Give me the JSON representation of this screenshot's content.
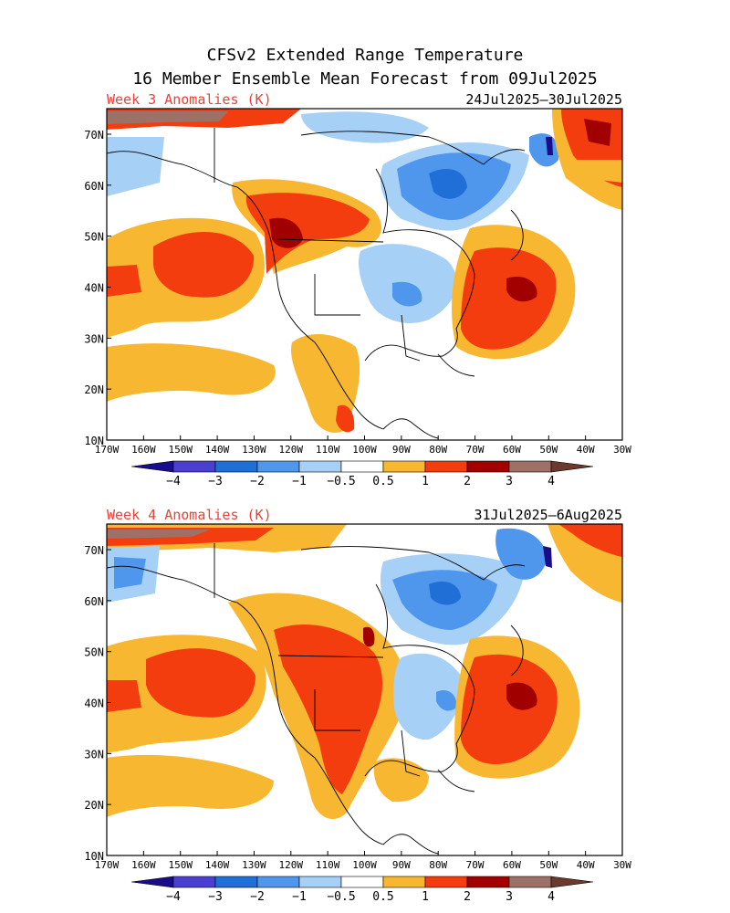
{
  "title": {
    "line1": "CFSv2 Extended Range Temperature",
    "line2": "16 Member Ensemble Mean Forecast from 09Jul2025"
  },
  "panels": [
    {
      "label": "Week 3 Anomalies (K)",
      "dates": "24Jul2025–30Jul2025",
      "lat_ticks": [
        "70N",
        "60N",
        "50N",
        "40N",
        "30N",
        "20N",
        "10N"
      ],
      "lon_ticks": [
        "170W",
        "160W",
        "150W",
        "140W",
        "130W",
        "120W",
        "110W",
        "100W",
        "90W",
        "80W",
        "70W",
        "60W",
        "50W",
        "40W",
        "30W"
      ],
      "colorbar_labels": [
        "−4",
        "−3",
        "−2",
        "−1",
        "−0.5",
        "0.5",
        "1",
        "2",
        "3",
        "4"
      ]
    },
    {
      "label": "Week 4 Anomalies (K)",
      "dates": "31Jul2025–6Aug2025",
      "lat_ticks": [
        "70N",
        "60N",
        "50N",
        "40N",
        "30N",
        "20N",
        "10N"
      ],
      "lon_ticks": [
        "170W",
        "160W",
        "150W",
        "140W",
        "130W",
        "120W",
        "110W",
        "100W",
        "90W",
        "80W",
        "70W",
        "60W",
        "50W",
        "40W",
        "30W"
      ],
      "colorbar_labels": [
        "−4",
        "−3",
        "−2",
        "−1",
        "−0.5",
        "0.5",
        "1",
        "2",
        "3",
        "4"
      ]
    }
  ],
  "map": {
    "extent_lon": [
      -170,
      -30
    ],
    "extent_lat": [
      10,
      75
    ],
    "colors": {
      "c_m4": "#1a0c8a",
      "c_m3": "#4a3fcf",
      "c_m2": "#1f6fd6",
      "c_m1": "#4f97ec",
      "c_m05": "#a7d0f7",
      "c_p05": "#f7b731",
      "c_p1": "#f43d0f",
      "c_p2": "#a00000",
      "c_p3": "#9e7168",
      "c_p4": "#6b3a2c",
      "title_text": "#000000",
      "panel_label": "#e8423a",
      "coast": "#000000"
    }
  }
}
